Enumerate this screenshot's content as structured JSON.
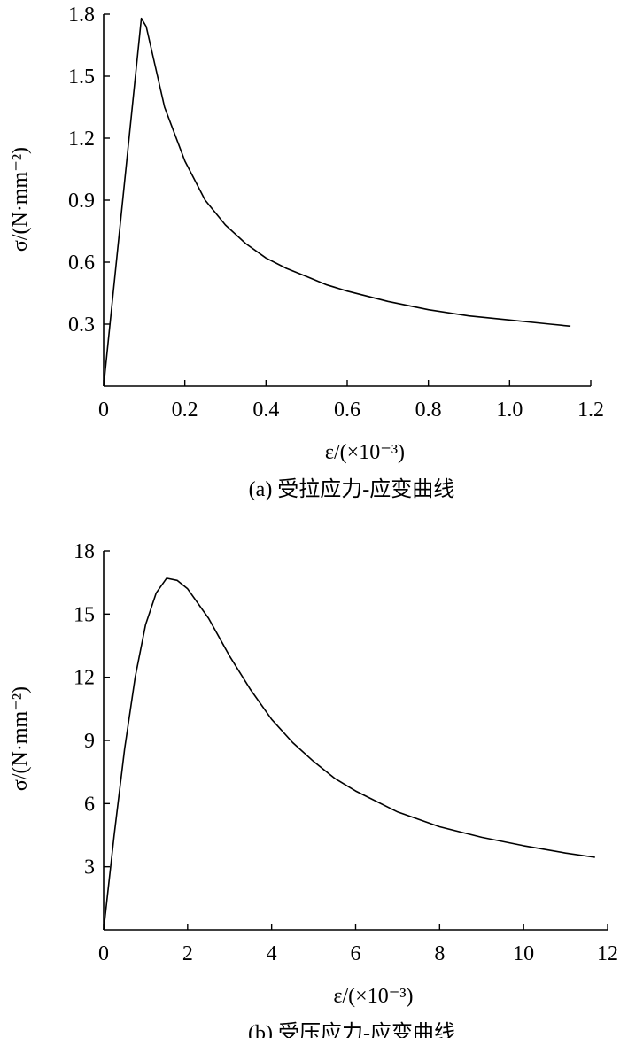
{
  "chart_data": [
    {
      "type": "line",
      "caption": "(a) 受拉应力-应变曲线",
      "xlabel": "ε/(×10⁻³)",
      "ylabel": "σ/(N·mm⁻²)",
      "xlim": [
        0,
        1.2
      ],
      "ylim": [
        0,
        1.8
      ],
      "xticks": [
        "0",
        "0.2",
        "0.4",
        "0.6",
        "0.8",
        "1.0",
        "1.2"
      ],
      "yticks": [
        "0.3",
        "0.6",
        "0.9",
        "1.2",
        "1.5",
        "1.8"
      ],
      "xtick_values": [
        0,
        0.2,
        0.4,
        0.6,
        0.8,
        1.0,
        1.2
      ],
      "ytick_values": [
        0.3,
        0.6,
        0.9,
        1.2,
        1.5,
        1.8
      ],
      "grid": false,
      "series": [
        {
          "x": [
            0.0,
            0.093,
            0.105,
            0.15,
            0.2,
            0.25,
            0.3,
            0.35,
            0.4,
            0.45,
            0.5,
            0.55,
            0.6,
            0.7,
            0.8,
            0.9,
            1.0,
            1.1,
            1.15
          ],
          "y": [
            0.0,
            1.78,
            1.74,
            1.35,
            1.09,
            0.9,
            0.78,
            0.69,
            0.62,
            0.57,
            0.53,
            0.49,
            0.46,
            0.41,
            0.37,
            0.34,
            0.32,
            0.3,
            0.29
          ]
        }
      ]
    },
    {
      "type": "line",
      "caption": "(b) 受压应力-应变曲线",
      "xlabel": "ε/(×10⁻³)",
      "ylabel": "σ/(N·mm⁻²)",
      "xlim": [
        0,
        12
      ],
      "ylim": [
        0,
        18
      ],
      "xticks": [
        "0",
        "2",
        "4",
        "6",
        "8",
        "10",
        "12"
      ],
      "yticks": [
        "3",
        "6",
        "9",
        "12",
        "15",
        "18"
      ],
      "xtick_values": [
        0,
        2,
        4,
        6,
        8,
        10,
        12
      ],
      "ytick_values": [
        3,
        6,
        9,
        12,
        15,
        18
      ],
      "grid": false,
      "series": [
        {
          "x": [
            0.0,
            0.25,
            0.5,
            0.75,
            1.0,
            1.25,
            1.5,
            1.75,
            2.0,
            2.5,
            3.0,
            3.5,
            4.0,
            4.5,
            5.0,
            5.5,
            6.0,
            7.0,
            8.0,
            9.0,
            10.0,
            11.0,
            11.7
          ],
          "y": [
            0.0,
            4.5,
            8.6,
            12.0,
            14.5,
            16.0,
            16.7,
            16.6,
            16.2,
            14.8,
            13.0,
            11.4,
            10.0,
            8.9,
            8.0,
            7.2,
            6.6,
            5.6,
            4.9,
            4.4,
            4.0,
            3.65,
            3.45
          ]
        }
      ]
    }
  ]
}
